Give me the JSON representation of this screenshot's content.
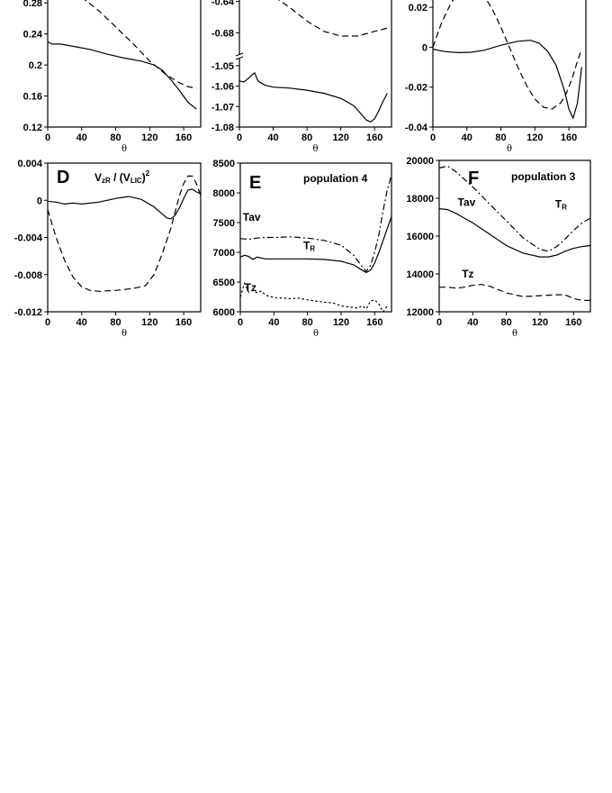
{
  "chart_data": [
    {
      "id": "A",
      "type": "line",
      "title": "",
      "annotation": "",
      "xlabel": "θ",
      "ylabel": "",
      "xlim": [
        0,
        180
      ],
      "ylim": [
        0.12,
        0.3
      ],
      "x_ticks": [
        "0",
        "40",
        "80",
        "120",
        "160"
      ],
      "x_tick_values": [
        0,
        40,
        80,
        120,
        160
      ],
      "y_ticks": [
        "0.12",
        "0.16",
        "0.2",
        "0.24",
        "0.28"
      ],
      "y_tick_values": [
        0.12,
        0.16,
        0.2,
        0.24,
        0.28
      ],
      "series": [
        {
          "style": "solid",
          "x": [
            0,
            5,
            15,
            30,
            50,
            70,
            90,
            110,
            125,
            135,
            145,
            155,
            165,
            175
          ],
          "y": [
            0.23,
            0.227,
            0.227,
            0.224,
            0.22,
            0.214,
            0.209,
            0.205,
            0.2,
            0.193,
            0.181,
            0.167,
            0.152,
            0.143
          ]
        },
        {
          "style": "dashed",
          "x": [
            30,
            45,
            60,
            80,
            100,
            120,
            140,
            155,
            165,
            175
          ],
          "y": [
            0.295,
            0.283,
            0.27,
            0.249,
            0.228,
            0.205,
            0.187,
            0.177,
            0.172,
            0.17
          ]
        }
      ],
      "labels": []
    },
    {
      "id": "B",
      "type": "line",
      "title": "",
      "annotation": "",
      "xlabel": "θ",
      "ylabel": "",
      "xlim": [
        0,
        180
      ],
      "y_ticks": [
        "-0.64",
        "-0.68",
        "-1.05",
        "-1.06",
        "-1.07",
        "-1.08"
      ],
      "x_ticks": [
        "0",
        "40",
        "80",
        "120",
        "160"
      ],
      "x_tick_values": [
        0,
        40,
        80,
        120,
        160
      ],
      "upper": {
        "ylim": [
          -0.707,
          -0.622
        ],
        "y_tick_values": [
          -0.64,
          -0.68
        ]
      },
      "lower": {
        "ylim": [
          -1.08,
          -1.047
        ],
        "y_tick_values": [
          -1.05,
          -1.06,
          -1.07,
          -1.08
        ]
      },
      "series": [
        {
          "style": "dashed",
          "segment": "upper",
          "x": [
            20,
            40,
            60,
            80,
            100,
            120,
            140,
            160,
            175
          ],
          "y": [
            -0.624,
            -0.633,
            -0.648,
            -0.665,
            -0.678,
            -0.684,
            -0.684,
            -0.678,
            -0.674
          ]
        },
        {
          "style": "solid",
          "segment": "lower",
          "x": [
            0,
            5,
            10,
            15,
            18,
            22,
            30,
            40,
            60,
            80,
            100,
            120,
            135,
            145,
            150,
            155,
            160,
            165,
            170,
            175
          ],
          "y": [
            -1.0575,
            -1.058,
            -1.0565,
            -1.0545,
            -1.0535,
            -1.0575,
            -1.0595,
            -1.0605,
            -1.061,
            -1.062,
            -1.0635,
            -1.066,
            -1.0695,
            -1.074,
            -1.0765,
            -1.0775,
            -1.076,
            -1.072,
            -1.0675,
            -1.0635
          ]
        }
      ],
      "labels": []
    },
    {
      "id": "C",
      "type": "line",
      "title": "",
      "annotation": "",
      "xlabel": "θ",
      "ylabel": "",
      "xlim": [
        0,
        180
      ],
      "ylim": [
        -0.04,
        0.03
      ],
      "x_ticks": [
        "0",
        "40",
        "80",
        "120",
        "160"
      ],
      "x_tick_values": [
        0,
        40,
        80,
        120,
        160
      ],
      "y_ticks": [
        "-0.04",
        "-0.02",
        "0",
        "0.02"
      ],
      "y_tick_values": [
        -0.04,
        -0.02,
        0,
        0.02
      ],
      "series": [
        {
          "style": "solid",
          "x": [
            0,
            15,
            30,
            45,
            60,
            80,
            100,
            115,
            125,
            135,
            145,
            155,
            160,
            165,
            170,
            175
          ],
          "y": [
            -0.001,
            -0.0022,
            -0.0027,
            -0.0025,
            -0.0015,
            0.001,
            0.003,
            0.0035,
            0.002,
            -0.002,
            -0.009,
            -0.022,
            -0.031,
            -0.0355,
            -0.028,
            -0.01
          ]
        },
        {
          "style": "dashed",
          "x": [
            0,
            10,
            20,
            30,
            40,
            50,
            60,
            70,
            80,
            90,
            100,
            110,
            120,
            130,
            140,
            150,
            155,
            160,
            165,
            170,
            175
          ],
          "y": [
            0.0,
            0.012,
            0.021,
            0.028,
            0.031,
            0.03,
            0.026,
            0.019,
            0.01,
            0.0,
            -0.01,
            -0.019,
            -0.026,
            -0.03,
            -0.031,
            -0.028,
            -0.025,
            -0.02,
            -0.014,
            -0.007,
            -0.001
          ]
        }
      ],
      "labels": []
    },
    {
      "id": "D",
      "type": "line",
      "title": "",
      "annotation": "V_zR / (V_LIC)^2",
      "annotation_parts": {
        "v": "V",
        "sub1": "zR",
        "mid": " / (V",
        "sub2": "LIC",
        "close": ")",
        "sup": "2"
      },
      "xlabel": "θ",
      "ylabel": "",
      "xlim": [
        0,
        180
      ],
      "ylim": [
        -0.012,
        0.004
      ],
      "x_ticks": [
        "0",
        "40",
        "80",
        "120",
        "160"
      ],
      "x_tick_values": [
        0,
        40,
        80,
        120,
        160
      ],
      "y_ticks": [
        "0.004",
        "0",
        "-0.004",
        "-0.008",
        "-0.012"
      ],
      "y_tick_values": [
        0.004,
        0,
        -0.004,
        -0.008,
        -0.012
      ],
      "series": [
        {
          "style": "solid",
          "x": [
            0,
            10,
            20,
            30,
            40,
            60,
            80,
            95,
            110,
            125,
            135,
            140,
            145,
            150,
            155,
            160,
            165,
            170,
            175,
            180
          ],
          "y": [
            -0.0001,
            -0.0002,
            -0.0004,
            -0.0003,
            -0.0004,
            -0.0002,
            0.0002,
            0.0004,
            0.0001,
            -0.0007,
            -0.0015,
            -0.0019,
            -0.002,
            -0.0016,
            -0.0008,
            0.0002,
            0.0011,
            0.0012,
            0.0009,
            0.0007
          ]
        },
        {
          "style": "dashed",
          "x": [
            0,
            10,
            20,
            30,
            40,
            50,
            60,
            80,
            100,
            115,
            125,
            135,
            145,
            150,
            155,
            160,
            165,
            170,
            175,
            180
          ],
          "y": [
            -0.001,
            -0.004,
            -0.0065,
            -0.0083,
            -0.0093,
            -0.0097,
            -0.0098,
            -0.0097,
            -0.0095,
            -0.0092,
            -0.008,
            -0.0057,
            -0.003,
            -0.0012,
            0.0005,
            0.0018,
            0.0026,
            0.0026,
            0.0018,
            0.0005
          ]
        }
      ],
      "labels": []
    },
    {
      "id": "E",
      "type": "line",
      "title": "",
      "annotation": "population 4",
      "xlabel": "θ",
      "ylabel": "",
      "xlim": [
        0,
        180
      ],
      "ylim": [
        6000,
        8500
      ],
      "x_ticks": [
        "0",
        "40",
        "80",
        "120",
        "160"
      ],
      "x_tick_values": [
        0,
        40,
        80,
        120,
        160
      ],
      "y_ticks": [
        "8500",
        "8000",
        "7500",
        "7000",
        "6500",
        "6000"
      ],
      "y_tick_values": [
        8500,
        8000,
        7500,
        7000,
        6500,
        6000
      ],
      "series": [
        {
          "name": "Tav",
          "style": "solid",
          "x": [
            0,
            5,
            10,
            15,
            20,
            30,
            40,
            60,
            80,
            100,
            120,
            135,
            145,
            150,
            155,
            160,
            165,
            170,
            175,
            180
          ],
          "y": [
            6920,
            6950,
            6930,
            6880,
            6920,
            6890,
            6890,
            6890,
            6890,
            6880,
            6850,
            6790,
            6700,
            6660,
            6700,
            6820,
            7000,
            7200,
            7400,
            7600
          ]
        },
        {
          "name": "TR",
          "style": "dashdot",
          "x": [
            0,
            10,
            20,
            30,
            40,
            60,
            80,
            100,
            120,
            135,
            145,
            150,
            155,
            160,
            165,
            170,
            175,
            180
          ],
          "y": [
            7230,
            7220,
            7240,
            7250,
            7250,
            7260,
            7240,
            7200,
            7120,
            6950,
            6760,
            6680,
            6780,
            7000,
            7300,
            7700,
            8050,
            8300
          ]
        },
        {
          "name": "Tz",
          "style": "dotted",
          "x": [
            0,
            5,
            10,
            15,
            20,
            25,
            30,
            40,
            50,
            60,
            70,
            80,
            90,
            100,
            110,
            120,
            130,
            140,
            145,
            150,
            155,
            160,
            165,
            170,
            175
          ],
          "y": [
            6250,
            6480,
            6330,
            6360,
            6320,
            6350,
            6280,
            6240,
            6230,
            6220,
            6230,
            6200,
            6180,
            6160,
            6150,
            6100,
            6080,
            6060,
            6100,
            6050,
            6180,
            6200,
            6130,
            6000,
            6100
          ]
        }
      ],
      "labels": [
        {
          "text": "Tav",
          "x": 3,
          "y": 7530,
          "sub": ""
        },
        {
          "text": "T",
          "x": 75,
          "y": 7050,
          "sub": "R"
        },
        {
          "text": "Tz",
          "x": 5,
          "y": 6350,
          "sub": ""
        }
      ]
    },
    {
      "id": "F",
      "type": "line",
      "title": "",
      "annotation": "population 3",
      "xlabel": "θ",
      "ylabel": "",
      "xlim": [
        0,
        180
      ],
      "ylim": [
        12000,
        20000
      ],
      "x_ticks": [
        "0",
        "40",
        "80",
        "120",
        "160"
      ],
      "x_tick_values": [
        0,
        40,
        80,
        120,
        160
      ],
      "y_ticks": [
        "20000",
        "18000",
        "16000",
        "14000",
        "12000"
      ],
      "y_tick_values": [
        20000,
        18000,
        16000,
        14000,
        12000
      ],
      "series": [
        {
          "name": "Tav",
          "style": "solid",
          "x": [
            0,
            10,
            20,
            30,
            40,
            60,
            80,
            100,
            120,
            130,
            140,
            150,
            160,
            170,
            180
          ],
          "y": [
            17450,
            17400,
            17200,
            16950,
            16700,
            16100,
            15500,
            15100,
            14900,
            14900,
            15000,
            15200,
            15350,
            15450,
            15500
          ]
        },
        {
          "name": "TR",
          "style": "dashdot",
          "x": [
            0,
            10,
            20,
            30,
            40,
            60,
            80,
            100,
            120,
            130,
            140,
            150,
            160,
            170,
            180
          ],
          "y": [
            19600,
            19700,
            19400,
            19000,
            18600,
            17700,
            16800,
            15900,
            15300,
            15200,
            15450,
            15850,
            16300,
            16700,
            16950
          ]
        },
        {
          "name": "Tz",
          "style": "dashed",
          "x": [
            0,
            10,
            20,
            30,
            40,
            50,
            60,
            80,
            100,
            120,
            140,
            150,
            160,
            170,
            180
          ],
          "y": [
            13300,
            13300,
            13250,
            13300,
            13400,
            13450,
            13350,
            13000,
            12800,
            12850,
            12900,
            12900,
            12700,
            12600,
            12600
          ]
        }
      ],
      "labels": [
        {
          "text": "Tav",
          "x": 22,
          "y": 17600,
          "sub": ""
        },
        {
          "text": "T",
          "x": 138,
          "y": 17500,
          "sub": "R"
        },
        {
          "text": "Tz",
          "x": 27,
          "y": 13800,
          "sub": ""
        }
      ]
    }
  ]
}
